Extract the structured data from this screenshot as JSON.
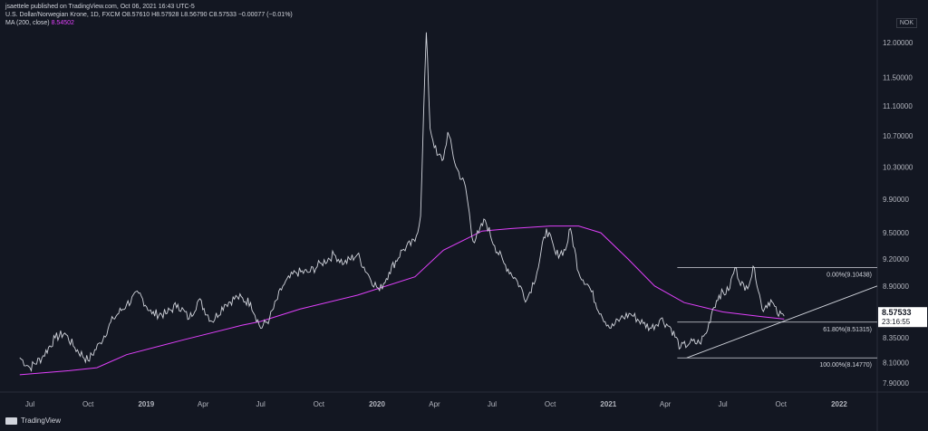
{
  "header": {
    "line1": "jsaettele published on TradingView.com, Oct 06, 2021 16:43 UTC-5",
    "line2": "U.S. Dollar/Norwegian Krone, 1D, FXCM  O8.57610  H8.57928  L8.56790  C8.57533  −0.00077 (−0.01%)",
    "ma_label": "MA (200, close)",
    "ma_value": "8.54502"
  },
  "currency": "NOK",
  "footer": {
    "brand": "TradingView"
  },
  "chart_data": {
    "type": "line",
    "price_axis": {
      "ticks": [
        12.0,
        11.5,
        11.1,
        10.7,
        10.3,
        9.9,
        9.5,
        9.2,
        8.9,
        8.6,
        8.35,
        8.1,
        7.9
      ],
      "tick_labels": [
        "12.00000",
        "11.50000",
        "11.10000",
        "10.70000",
        "10.30000",
        "9.90000",
        "9.50000",
        "9.20000",
        "8.90000",
        "8.60000",
        "8.35000",
        "8.10000",
        "7.90000"
      ],
      "scale": "log"
    },
    "time_axis": {
      "labels": [
        "Jul",
        "Oct",
        "2019",
        "Apr",
        "Jul",
        "Oct",
        "2020",
        "Apr",
        "Jul",
        "Oct",
        "2021",
        "Apr",
        "Jul",
        "Oct",
        "2022"
      ],
      "bold": [
        "2019",
        "2020",
        "2021",
        "2022"
      ]
    },
    "current_price": {
      "value": "8.57533",
      "countdown": "23:16:55"
    },
    "fib_levels": [
      {
        "label": "0.00%(9.10438)",
        "value": 9.10438
      },
      {
        "label": "61.80%(8.51315)",
        "value": 8.51315
      },
      {
        "label": "100.00%(8.14770)",
        "value": 8.1477
      }
    ],
    "price_series": [
      [
        "2018-06-15",
        8.15
      ],
      [
        "2018-07-01",
        8.05
      ],
      [
        "2018-07-20",
        8.15
      ],
      [
        "2018-08-10",
        8.35
      ],
      [
        "2018-08-25",
        8.4
      ],
      [
        "2018-09-10",
        8.25
      ],
      [
        "2018-10-01",
        8.12
      ],
      [
        "2018-10-20",
        8.3
      ],
      [
        "2018-11-10",
        8.55
      ],
      [
        "2018-12-01",
        8.7
      ],
      [
        "2018-12-20",
        8.82
      ],
      [
        "2019-01-10",
        8.6
      ],
      [
        "2019-02-01",
        8.6
      ],
      [
        "2019-02-20",
        8.7
      ],
      [
        "2019-03-10",
        8.55
      ],
      [
        "2019-03-25",
        8.75
      ],
      [
        "2019-04-15",
        8.52
      ],
      [
        "2019-05-05",
        8.7
      ],
      [
        "2019-05-25",
        8.78
      ],
      [
        "2019-06-15",
        8.72
      ],
      [
        "2019-07-01",
        8.45
      ],
      [
        "2019-07-15",
        8.55
      ],
      [
        "2019-08-05",
        8.9
      ],
      [
        "2019-08-25",
        9.05
      ],
      [
        "2019-09-15",
        9.05
      ],
      [
        "2019-10-05",
        9.15
      ],
      [
        "2019-10-25",
        9.25
      ],
      [
        "2019-11-10",
        9.15
      ],
      [
        "2019-12-01",
        9.25
      ],
      [
        "2019-12-20",
        9.0
      ],
      [
        "2020-01-05",
        8.85
      ],
      [
        "2020-01-20",
        9.05
      ],
      [
        "2020-02-10",
        9.3
      ],
      [
        "2020-03-01",
        9.4
      ],
      [
        "2020-03-10",
        9.7
      ],
      [
        "2020-03-19",
        12.15
      ],
      [
        "2020-03-25",
        10.8
      ],
      [
        "2020-04-05",
        10.45
      ],
      [
        "2020-04-15",
        10.4
      ],
      [
        "2020-04-22",
        10.75
      ],
      [
        "2020-05-05",
        10.3
      ],
      [
        "2020-05-20",
        10.05
      ],
      [
        "2020-06-01",
        9.4
      ],
      [
        "2020-06-10",
        9.5
      ],
      [
        "2020-06-20",
        9.65
      ],
      [
        "2020-07-05",
        9.35
      ],
      [
        "2020-07-20",
        9.15
      ],
      [
        "2020-08-10",
        8.95
      ],
      [
        "2020-08-25",
        8.75
      ],
      [
        "2020-09-10",
        9.05
      ],
      [
        "2020-09-25",
        9.55
      ],
      [
        "2020-10-10",
        9.25
      ],
      [
        "2020-10-25",
        9.3
      ],
      [
        "2020-11-02",
        9.55
      ],
      [
        "2020-11-15",
        9.05
      ],
      [
        "2020-12-01",
        8.9
      ],
      [
        "2020-12-20",
        8.6
      ],
      [
        "2021-01-05",
        8.45
      ],
      [
        "2021-01-20",
        8.55
      ],
      [
        "2021-02-05",
        8.6
      ],
      [
        "2021-02-25",
        8.5
      ],
      [
        "2021-03-10",
        8.45
      ],
      [
        "2021-03-25",
        8.55
      ],
      [
        "2021-04-10",
        8.45
      ],
      [
        "2021-04-25",
        8.25
      ],
      [
        "2021-05-10",
        8.3
      ],
      [
        "2021-05-25",
        8.3
      ],
      [
        "2021-06-05",
        8.4
      ],
      [
        "2021-06-15",
        8.65
      ],
      [
        "2021-06-25",
        8.8
      ],
      [
        "2021-07-10",
        8.85
      ],
      [
        "2021-07-20",
        9.1
      ],
      [
        "2021-08-05",
        8.85
      ],
      [
        "2021-08-20",
        9.1
      ],
      [
        "2021-09-01",
        8.65
      ],
      [
        "2021-09-15",
        8.75
      ],
      [
        "2021-09-25",
        8.6
      ],
      [
        "2021-10-06",
        8.57533
      ]
    ],
    "ma_series": [
      [
        "2018-06-15",
        7.98
      ],
      [
        "2018-09-01",
        8.02
      ],
      [
        "2018-10-15",
        8.05
      ],
      [
        "2018-12-01",
        8.18
      ],
      [
        "2019-03-01",
        8.33
      ],
      [
        "2019-06-01",
        8.48
      ],
      [
        "2019-07-01",
        8.52
      ],
      [
        "2019-09-01",
        8.65
      ],
      [
        "2019-12-01",
        8.8
      ],
      [
        "2020-03-01",
        9.0
      ],
      [
        "2020-04-15",
        9.3
      ],
      [
        "2020-06-15",
        9.52
      ],
      [
        "2020-08-01",
        9.55
      ],
      [
        "2020-10-01",
        9.58
      ],
      [
        "2020-11-15",
        9.58
      ],
      [
        "2020-12-20",
        9.5
      ],
      [
        "2021-02-01",
        9.2
      ],
      [
        "2021-03-15",
        8.9
      ],
      [
        "2021-05-01",
        8.72
      ],
      [
        "2021-07-01",
        8.62
      ],
      [
        "2021-09-01",
        8.57
      ],
      [
        "2021-10-06",
        8.54502
      ]
    ],
    "trendline": [
      [
        "2021-05-05",
        8.1477
      ],
      [
        "2022-03-20",
        8.9
      ]
    ],
    "grid": false,
    "legend": "top-left"
  }
}
